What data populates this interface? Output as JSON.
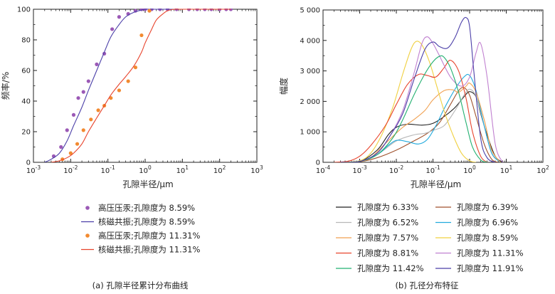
{
  "chart_data": [
    {
      "type": "line+scatter",
      "panel": "a",
      "caption": "(a) 孔隙半径累计分布曲线",
      "xlabel": "孔隙半径/μm",
      "ylabel": "频率/%",
      "xscale": "log",
      "xlim": [
        0.001,
        1000
      ],
      "ylim": [
        0,
        100
      ],
      "xticks": [
        {
          "base": "10",
          "exp": "-3"
        },
        {
          "base": "10",
          "exp": "-2"
        },
        {
          "base": "10",
          "exp": "-1"
        },
        {
          "base": "10",
          "exp": "0"
        },
        {
          "base": "10",
          "exp": "1"
        },
        {
          "base": "10",
          "exp": "2"
        },
        {
          "base": "10",
          "exp": "3"
        }
      ],
      "yticks": [
        "0",
        "20",
        "40",
        "60",
        "80",
        "100"
      ],
      "legend_position": "below",
      "series": [
        {
          "name": "高压压汞;孔隙度为 8.59%",
          "kind": "scatter",
          "color": "#9b59b6",
          "x": [
            0.0035,
            0.0055,
            0.008,
            0.012,
            0.016,
            0.022,
            0.03,
            0.05,
            0.08,
            0.13,
            0.2,
            0.35,
            0.55,
            0.8,
            1.0,
            1.5,
            2.5,
            4,
            7,
            15,
            25,
            40,
            60,
            100,
            150,
            200
          ],
          "y": [
            4,
            10,
            21,
            31,
            42,
            46,
            53,
            64,
            71,
            87,
            95,
            97,
            99,
            100,
            100,
            100,
            100,
            100,
            100,
            100,
            100,
            100,
            100,
            100,
            100,
            100
          ]
        },
        {
          "name": "核磁共振;孔隙度为 8.59%",
          "kind": "line",
          "color": "#4b3fa8",
          "x": [
            0.002,
            0.003,
            0.005,
            0.008,
            0.012,
            0.02,
            0.03,
            0.05,
            0.08,
            0.12,
            0.2,
            0.3,
            0.5,
            0.8,
            1.0,
            1.5,
            3,
            10,
            100,
            200
          ],
          "y": [
            0,
            2,
            6,
            14,
            24,
            36,
            47,
            60,
            72,
            82,
            90,
            95,
            98,
            99.5,
            100,
            100,
            100,
            100,
            100,
            100
          ]
        },
        {
          "name": "高压压汞;孔隙度为 11.31%",
          "kind": "scatter",
          "color": "#f28a30",
          "x": [
            0.006,
            0.01,
            0.015,
            0.022,
            0.035,
            0.055,
            0.08,
            0.12,
            0.2,
            0.35,
            0.55,
            0.8,
            1.3
          ],
          "y": [
            2,
            6,
            12,
            21,
            28,
            34,
            37,
            42,
            47,
            53,
            62,
            83,
            99
          ]
        },
        {
          "name": "核磁共振;孔隙度为 11.31%",
          "kind": "line",
          "color": "#e8432c",
          "x": [
            0.003,
            0.005,
            0.008,
            0.012,
            0.02,
            0.03,
            0.05,
            0.08,
            0.12,
            0.2,
            0.3,
            0.5,
            0.8,
            1.0,
            1.5,
            2,
            3,
            4,
            6,
            10,
            100,
            200
          ],
          "y": [
            0,
            1,
            3,
            6,
            12,
            20,
            29,
            37,
            44,
            51,
            56,
            63,
            72,
            78,
            87,
            93,
            97,
            99,
            100,
            100,
            100,
            100
          ]
        }
      ]
    },
    {
      "type": "line",
      "panel": "b",
      "caption": "(b) 孔径分布特征",
      "xlabel": "孔隙半径/μm",
      "ylabel": "幅度",
      "xscale": "log",
      "xlim": [
        0.0001,
        100
      ],
      "ylim": [
        0,
        5000
      ],
      "xticks": [
        {
          "base": "10",
          "exp": "-4"
        },
        {
          "base": "10",
          "exp": "-3"
        },
        {
          "base": "10",
          "exp": "-2"
        },
        {
          "base": "10",
          "exp": "-1"
        },
        {
          "base": "10",
          "exp": "0"
        },
        {
          "base": "10",
          "exp": "1"
        },
        {
          "base": "10",
          "exp": "2"
        }
      ],
      "yticks": [
        "0",
        "1 000",
        "2 000",
        "3 000",
        "4 000",
        "5 000"
      ],
      "legend_position": "below",
      "series": [
        {
          "name": "孔隙度为 6.33%",
          "color": "#222222",
          "x": [
            0.0003,
            0.001,
            0.003,
            0.006,
            0.01,
            0.02,
            0.05,
            0.1,
            0.2,
            0.4,
            0.7,
            1.0,
            1.5,
            2,
            3,
            5,
            8
          ],
          "y": [
            0,
            30,
            400,
            900,
            1150,
            1250,
            1220,
            1280,
            1500,
            1800,
            2150,
            2320,
            2150,
            1600,
            900,
            200,
            0
          ]
        },
        {
          "name": "孔隙度为 6.39%",
          "color": "#a0522d",
          "x": [
            0.0003,
            0.001,
            0.003,
            0.01,
            0.03,
            0.07,
            0.15,
            0.3,
            0.5,
            0.7,
            1.0,
            1.5,
            2.5,
            4,
            6
          ],
          "y": [
            0,
            20,
            150,
            400,
            700,
            950,
            1300,
            1900,
            2350,
            2450,
            2200,
            1500,
            600,
            100,
            0
          ]
        },
        {
          "name": "孔隙度为 6.52%",
          "color": "#b8b8b8",
          "x": [
            0.0003,
            0.001,
            0.003,
            0.01,
            0.03,
            0.06,
            0.1,
            0.2,
            0.4,
            0.7,
            1.0,
            1.5,
            2.5,
            4,
            7
          ],
          "y": [
            0,
            30,
            250,
            700,
            900,
            950,
            1050,
            1200,
            1700,
            2200,
            2400,
            2150,
            1200,
            300,
            0
          ]
        },
        {
          "name": "孔隙度为 6.96%",
          "color": "#22aadd",
          "x": [
            0.0003,
            0.001,
            0.003,
            0.006,
            0.01,
            0.02,
            0.04,
            0.07,
            0.12,
            0.2,
            0.4,
            0.7,
            1.0,
            1.5,
            2.5,
            4,
            7
          ],
          "y": [
            0,
            30,
            250,
            550,
            720,
            680,
            600,
            750,
            1200,
            1750,
            2400,
            2800,
            2850,
            2350,
            1200,
            300,
            0
          ]
        },
        {
          "name": "孔隙度为 7.57%",
          "color": "#f0a050",
          "x": [
            0.0003,
            0.001,
            0.002,
            0.004,
            0.008,
            0.015,
            0.03,
            0.06,
            0.1,
            0.2,
            0.35,
            0.5,
            0.8,
            1.0,
            1.5,
            2.5,
            4,
            7
          ],
          "y": [
            0,
            30,
            150,
            500,
            850,
            1150,
            1400,
            1700,
            2050,
            2350,
            2380,
            2300,
            2500,
            2600,
            2300,
            1400,
            400,
            0
          ]
        },
        {
          "name": "孔隙度为 8.59%",
          "color": "#f0d040",
          "x": [
            0.0003,
            0.001,
            0.002,
            0.004,
            0.008,
            0.015,
            0.025,
            0.035,
            0.05,
            0.08,
            0.12,
            0.2,
            0.35,
            0.6,
            1.0,
            1.5
          ],
          "y": [
            0,
            50,
            300,
            900,
            1800,
            2900,
            3700,
            3970,
            3850,
            3300,
            2600,
            1700,
            900,
            300,
            50,
            0
          ]
        },
        {
          "name": "孔隙度为 8.81%",
          "color": "#e8432c",
          "x": [
            0.0002,
            0.0005,
            0.001,
            0.002,
            0.005,
            0.01,
            0.02,
            0.04,
            0.07,
            0.12,
            0.2,
            0.3,
            0.5,
            0.8,
            1.2,
            2,
            3
          ],
          "y": [
            0,
            40,
            200,
            550,
            1200,
            1900,
            2550,
            2880,
            2850,
            2800,
            3100,
            3350,
            3000,
            2100,
            1000,
            200,
            0
          ]
        },
        {
          "name": "孔隙度为 11.31%",
          "color": "#c080d0",
          "x": [
            0.0003,
            0.001,
            0.003,
            0.007,
            0.015,
            0.03,
            0.05,
            0.07,
            0.1,
            0.15,
            0.3,
            0.6,
            1.0,
            1.5,
            2,
            3,
            5,
            8
          ],
          "y": [
            0,
            30,
            300,
            900,
            1700,
            2900,
            3900,
            4120,
            3900,
            3500,
            2800,
            2500,
            2800,
            3600,
            3900,
            2800,
            600,
            0
          ]
        },
        {
          "name": "孔隙度为 11.42%",
          "color": "#22b070",
          "x": [
            0.0003,
            0.001,
            0.003,
            0.008,
            0.015,
            0.03,
            0.06,
            0.1,
            0.15,
            0.2,
            0.3,
            0.5,
            0.8,
            1.2,
            2,
            3
          ],
          "y": [
            0,
            30,
            250,
            800,
            1400,
            2200,
            2900,
            3300,
            3480,
            3450,
            3100,
            2300,
            1300,
            500,
            80,
            0
          ]
        },
        {
          "name": "孔隙度为 11.91%",
          "color": "#4b3fa8",
          "x": [
            0.0003,
            0.001,
            0.003,
            0.007,
            0.015,
            0.03,
            0.06,
            0.1,
            0.15,
            0.25,
            0.4,
            0.6,
            0.8,
            1.0,
            1.3,
            2,
            3,
            5
          ],
          "y": [
            0,
            30,
            300,
            900,
            1600,
            2700,
            3700,
            3950,
            3800,
            3750,
            4100,
            4600,
            4750,
            4450,
            3000,
            800,
            150,
            0
          ]
        }
      ]
    }
  ]
}
